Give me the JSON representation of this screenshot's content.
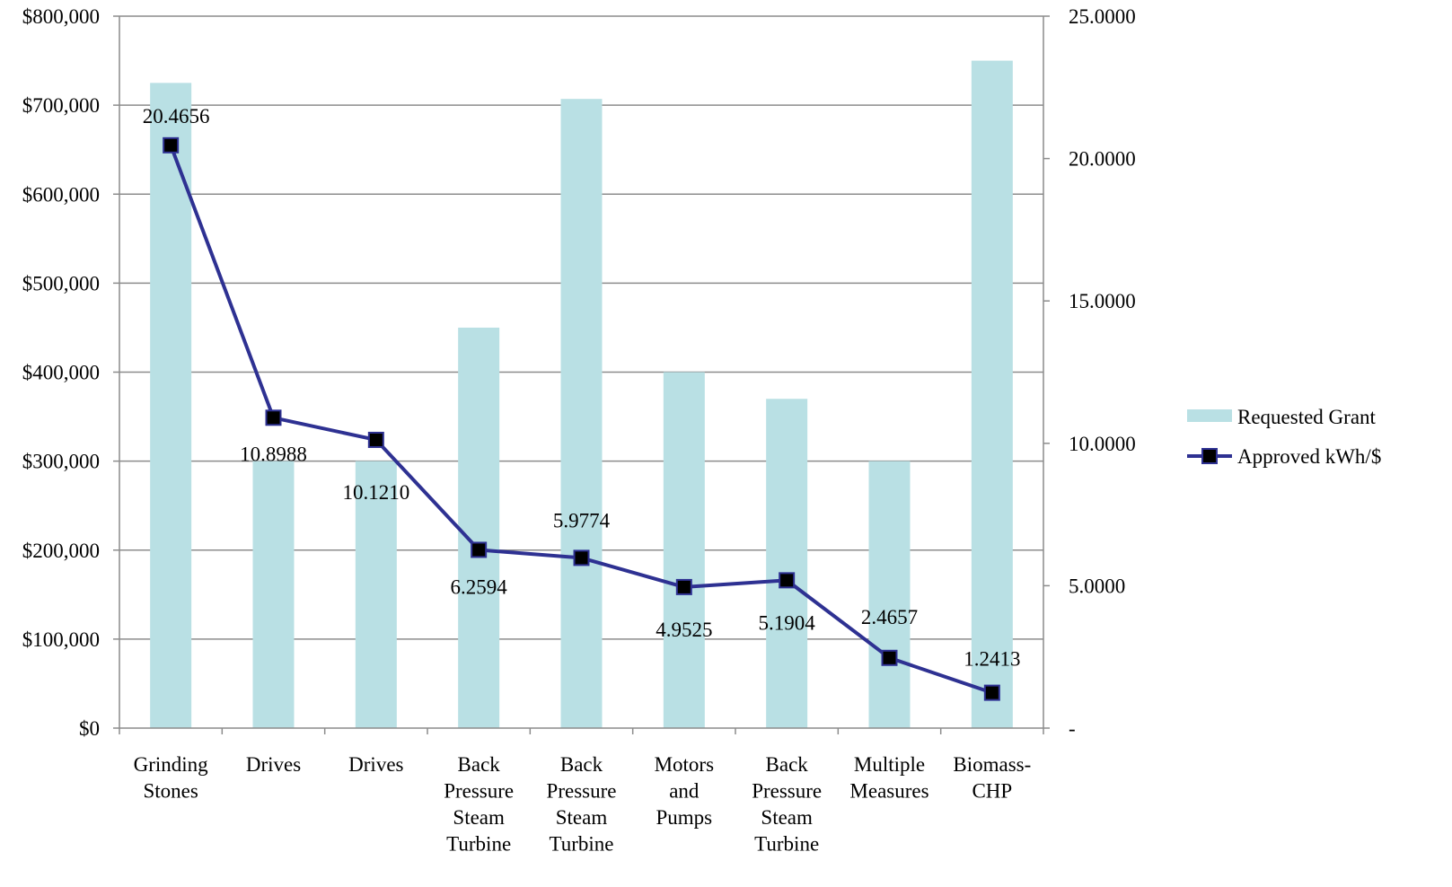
{
  "chart_data": {
    "type": "bar",
    "title": "",
    "xlabel": "",
    "ylabel": "",
    "y2label": "",
    "categories": [
      [
        "Grinding",
        "Stones"
      ],
      [
        "Drives"
      ],
      [
        "Drives"
      ],
      [
        "Back",
        "Pressure",
        "Steam",
        "Turbine"
      ],
      [
        "Back",
        "Pressure",
        "Steam",
        "Turbine"
      ],
      [
        "Motors",
        "and",
        "Pumps"
      ],
      [
        "Back",
        "Pressure",
        "Steam",
        "Turbine"
      ],
      [
        "Multiple",
        "Measures"
      ],
      [
        "Biomass-",
        "CHP"
      ]
    ],
    "ylim": [
      0,
      800000
    ],
    "y2lim": [
      0,
      25
    ],
    "y_ticks": [
      "$0",
      "$100,000",
      "$200,000",
      "$300,000",
      "$400,000",
      "$500,000",
      "$600,000",
      "$700,000",
      "$800,000"
    ],
    "y2_ticks": [
      "-",
      "5.0000",
      "10.0000",
      "15.0000",
      "20.0000",
      "25.0000"
    ],
    "grid": true,
    "legend": "right",
    "series": [
      {
        "name": "Requested Grant",
        "type": "bar",
        "axis": "left",
        "color": "#b9e0e4",
        "values": [
          725000,
          300000,
          300000,
          450000,
          707000,
          400000,
          370000,
          300000,
          750000
        ]
      },
      {
        "name": "Approved kWh/$",
        "type": "line",
        "axis": "right",
        "color": "#2e3192",
        "marker": "square",
        "marker_color": "#000000",
        "values": [
          20.4656,
          10.8988,
          10.121,
          6.2594,
          5.9774,
          4.9525,
          5.1904,
          2.4657,
          1.2413
        ],
        "data_labels": [
          "20.4656",
          "10.8988",
          "10.1210",
          "6.2594",
          "5.9774",
          "4.9525",
          "5.1904",
          "2.4657",
          "1.2413"
        ]
      }
    ]
  }
}
